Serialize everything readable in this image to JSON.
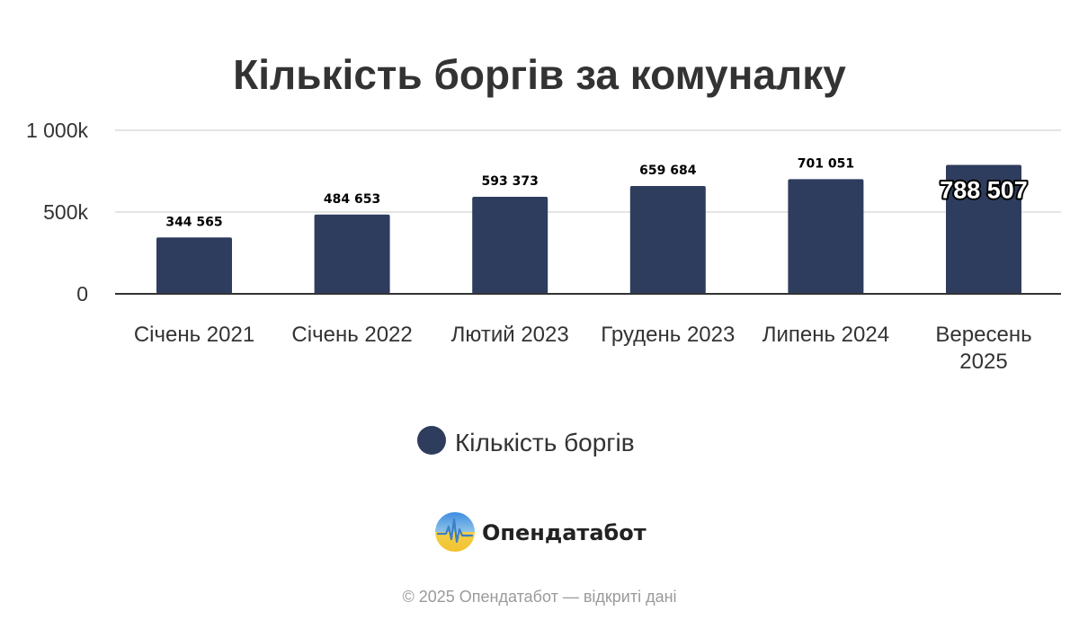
{
  "chart_data": {
    "type": "bar",
    "title": "Кількість боргів за комуналку",
    "categories": [
      "Січень 2021",
      "Січень 2022",
      "Лютий 2023",
      "Грудень 2023",
      "Липень 2024",
      "Вересень 2025"
    ],
    "series": [
      {
        "name": "Кількість боргів",
        "values": [
          344565,
          484653,
          593373,
          659684,
          701051,
          788507
        ],
        "labels": [
          "344 565",
          "484 653",
          "593 373",
          "659 684",
          "701 051",
          "788 507"
        ],
        "color": "#2e3d5e"
      }
    ],
    "yticks": [
      {
        "value": 0,
        "label": "0"
      },
      {
        "value": 500000,
        "label": "500k"
      },
      {
        "value": 1000000,
        "label": "1 000k"
      }
    ],
    "ylim": [
      0,
      1000000
    ],
    "grid": true,
    "legend_position": "bottom"
  },
  "branding": {
    "name": "Опендатабот",
    "copyright": "© 2025 Опендатабот — відкриті дані"
  },
  "colors": {
    "bar": "#2e3d5e",
    "grid": "#dcdcdc",
    "axis": "#333333"
  }
}
